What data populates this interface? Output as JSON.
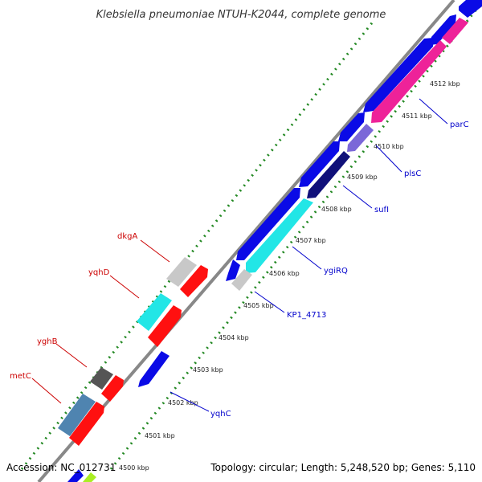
{
  "title": "Klebsiella pneumoniae NTUH-K2044, complete genome",
  "accession": "Accession: NC_012731",
  "stats": "Topology: circular; Length: 5,248,520 bp; Genes: 5,110",
  "ticks": [
    "4500 kbp",
    "4501 kbp",
    "4502 kbp",
    "4503 kbp",
    "4504 kbp",
    "4505 kbp",
    "4506 kbp",
    "4507 kbp",
    "4508 kbp",
    "4509 kbp",
    "4510 kbp",
    "4511 kbp",
    "4512 kbp"
  ],
  "genes_forward": [
    "parC",
    "plsC",
    "sufI",
    "ygiRQ",
    "KP1_4713",
    "yqhC"
  ],
  "genes_reverse": [
    "dkgA",
    "yqhD",
    "yghB",
    "metC"
  ],
  "colors": {
    "forward_label": "#0000cc",
    "reverse_label": "#cc0000",
    "dot_track": "#228822",
    "backbone": "#888888",
    "blue": "#0a0ae6",
    "navy": "#10107a",
    "cyan": "#22e6e6",
    "pink": "#ee2299",
    "lavender": "#7b68d8",
    "red": "#ff1010",
    "light_gray": "#c8c8c8",
    "dark_gray": "#555555",
    "steel_blue": "#4f84b0",
    "lime": "#aaee22"
  }
}
